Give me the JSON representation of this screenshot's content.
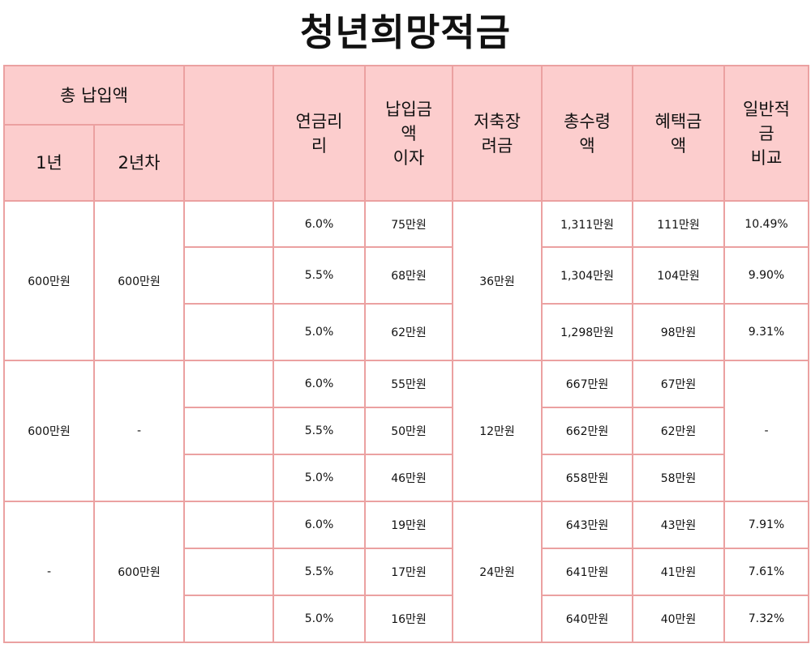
{
  "title": "청년희망적금",
  "header": {
    "total_payment": "총 납입액",
    "year1": "1년",
    "year2": "2년차",
    "blank": "",
    "interest_rate": "연금리\n리",
    "payment_interest": "납입금\n액\n이자",
    "savings_incentive": "저축장\n려금",
    "total_receipt": "총수령\n액",
    "benefit_amount": "혜택금\n액",
    "general_savings_comparison": "일반적\n금\n비교"
  },
  "groups": [
    {
      "year1": "600만원",
      "year2": "600만원",
      "incentive": "36만원",
      "rows": [
        {
          "rate": "6.0%",
          "interest": "75만원",
          "total": "1,311만원",
          "benefit": "111만원",
          "compare": "10.49%"
        },
        {
          "rate": "5.5%",
          "interest": "68만원",
          "total": "1,304만원",
          "benefit": "104만원",
          "compare": "9.90%"
        },
        {
          "rate": "5.0%",
          "interest": "62만원",
          "total": "1,298만원",
          "benefit": "98만원",
          "compare": "9.31%"
        }
      ]
    },
    {
      "year1": "600만원",
      "year2": "-",
      "incentive": "12만원",
      "compare": "-",
      "rows": [
        {
          "rate": "6.0%",
          "interest": "55만원",
          "total": "667만원",
          "benefit": "67만원"
        },
        {
          "rate": "5.5%",
          "interest": "50만원",
          "total": "662만원",
          "benefit": "62만원"
        },
        {
          "rate": "5.0%",
          "interest": "46만원",
          "total": "658만원",
          "benefit": "58만원"
        }
      ]
    },
    {
      "year1": "-",
      "year2": "600만원",
      "incentive": "24만원",
      "rows": [
        {
          "rate": "6.0%",
          "interest": "19만원",
          "total": "643만원",
          "benefit": "43만원",
          "compare": "7.91%"
        },
        {
          "rate": "5.5%",
          "interest": "17만원",
          "total": "641만원",
          "benefit": "41만원",
          "compare": "7.61%"
        },
        {
          "rate": "5.0%",
          "interest": "16만원",
          "total": "640만원",
          "benefit": "40만원",
          "compare": "7.32%"
        }
      ]
    }
  ],
  "colors": {
    "header_bg": "#fccdcd",
    "border": "#eba1a1"
  }
}
